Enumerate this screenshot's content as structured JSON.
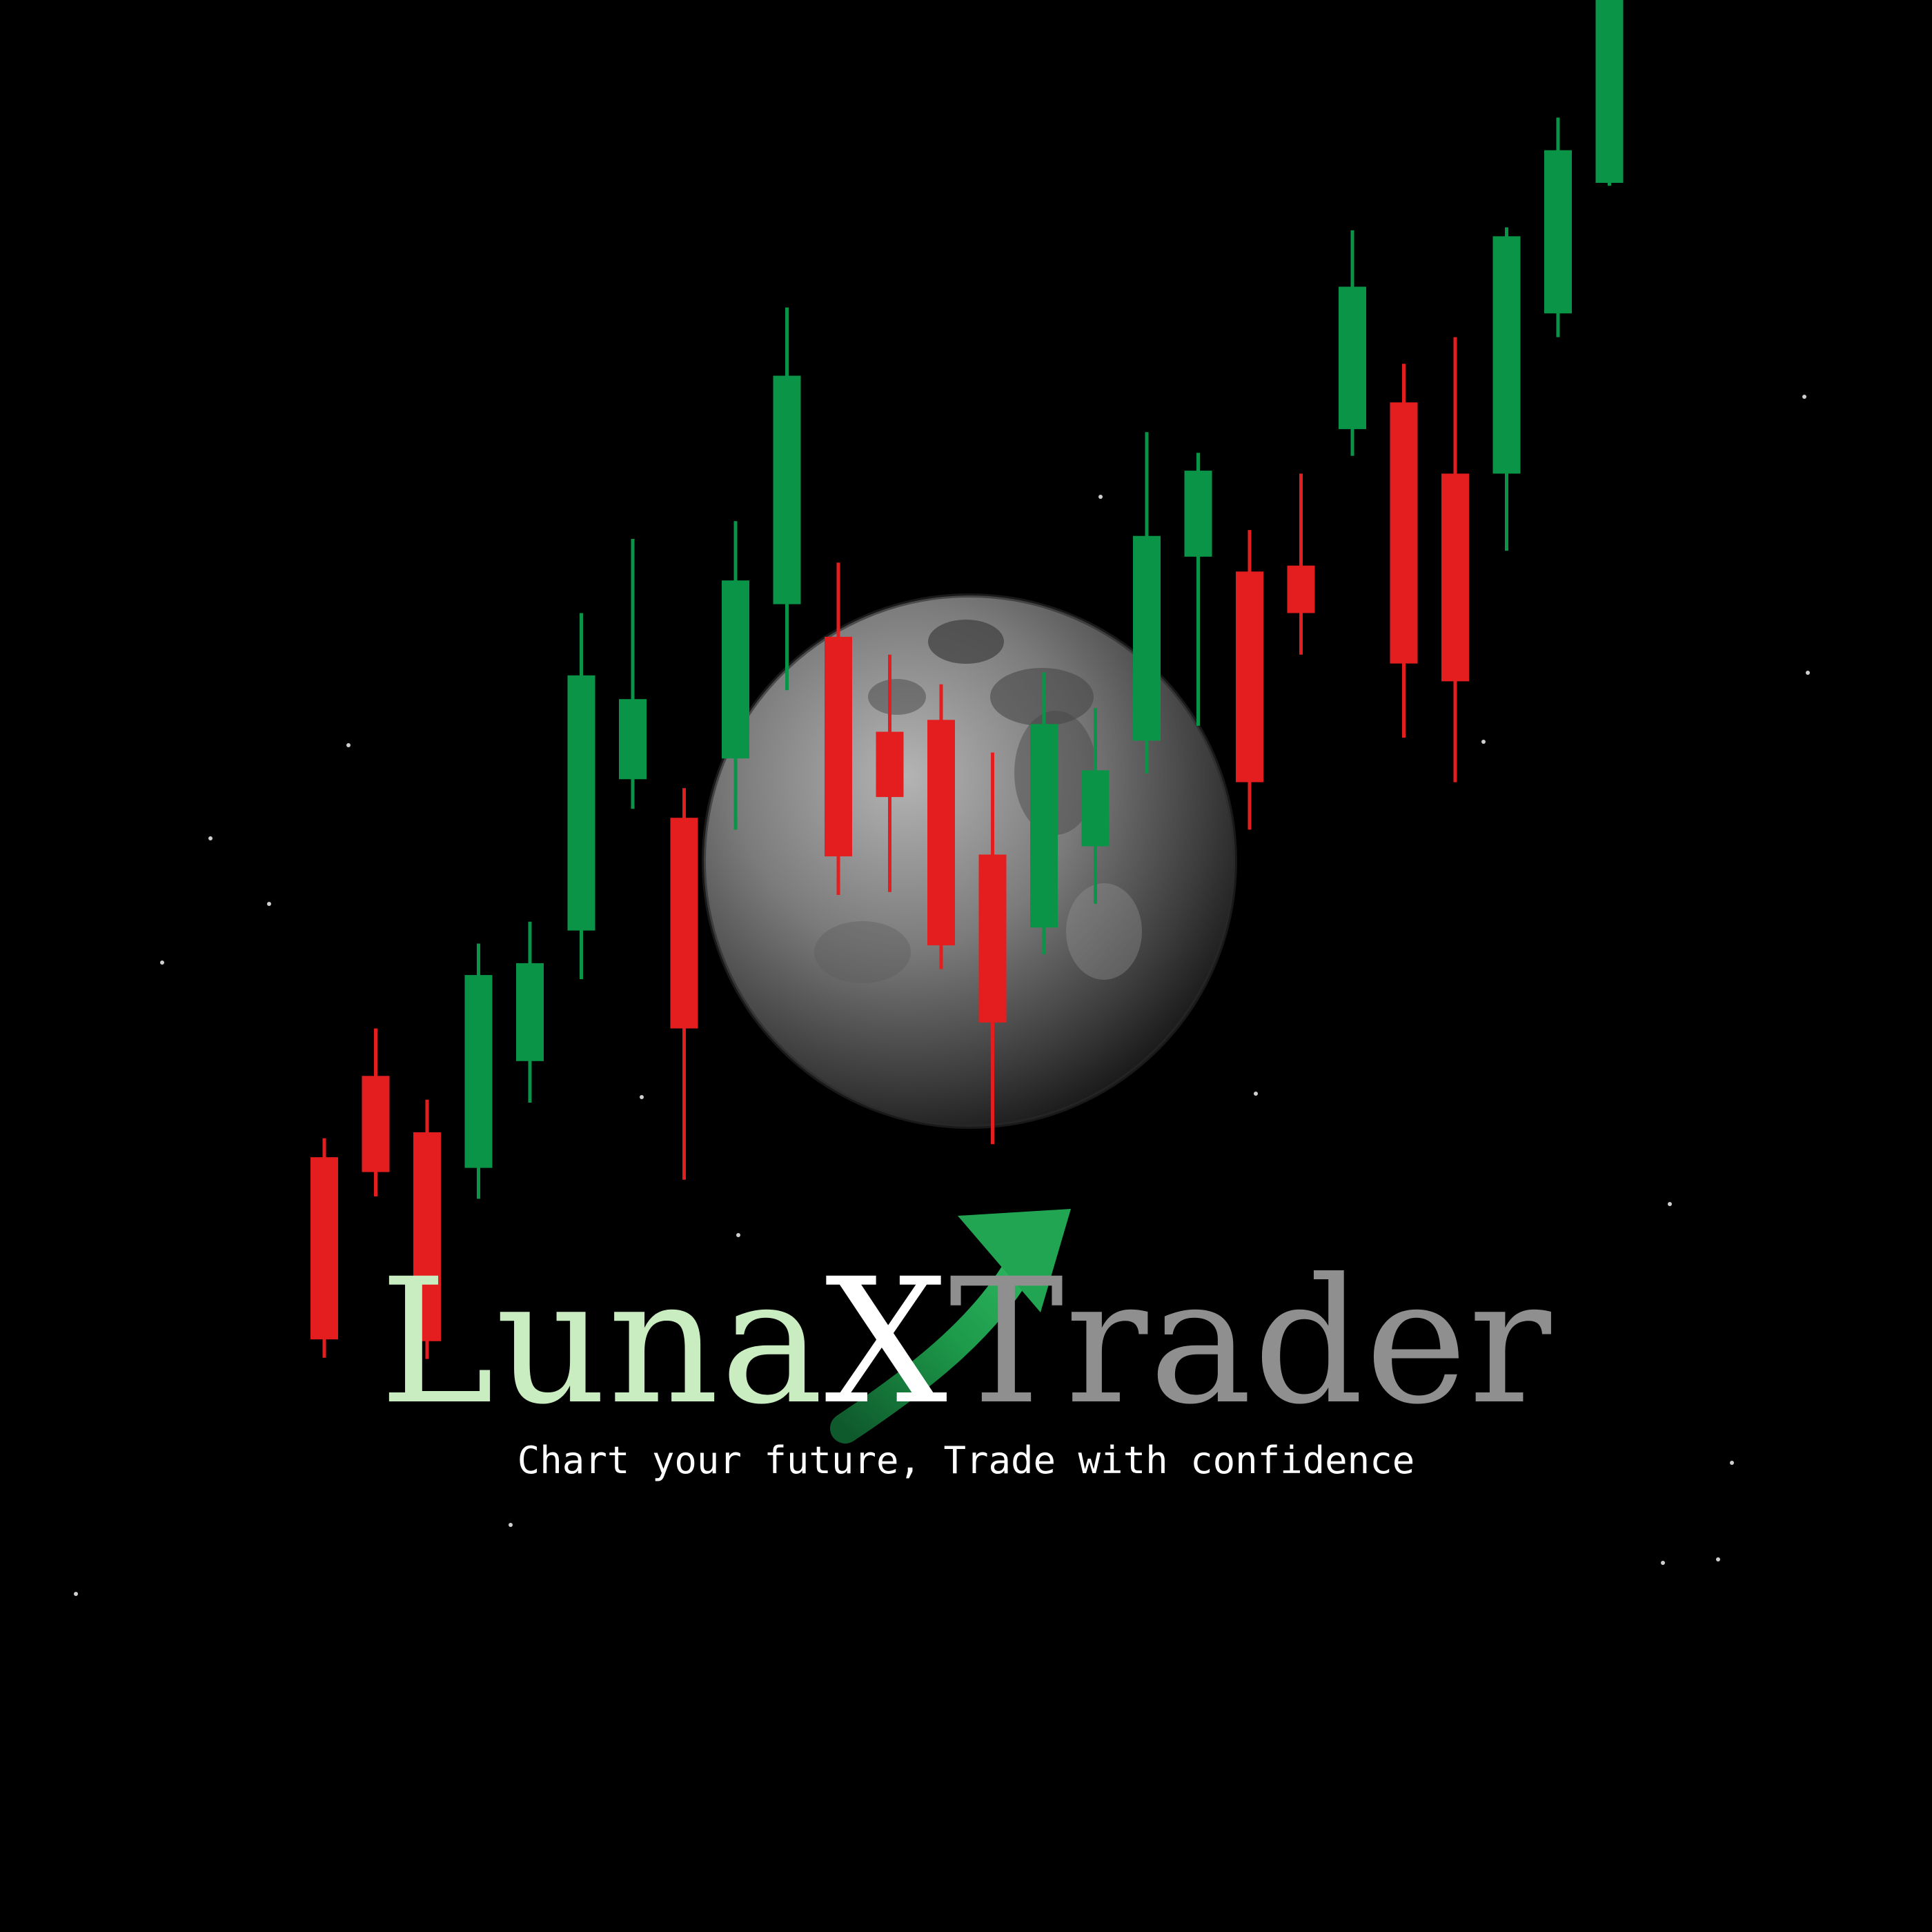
{
  "colors": {
    "background": "#000000",
    "bull": "#0a9447",
    "bear": "#e41e1e",
    "moon": "#7d7d7d",
    "arrow": "#1f9a4a",
    "luna_text": "#c9ecc0",
    "x_text": "#ffffff",
    "trader_text": "#8f8f8f",
    "tagline": "#ffffff"
  },
  "brand": {
    "luna": "Luna",
    "x": "X",
    "trader": "Trader",
    "tagline": "Chart your future, Trade with confidence"
  },
  "icons": {
    "moon": "moon-icon",
    "arrow": "up-arrow-icon"
  },
  "candles": [
    {
      "dir": "bear",
      "open": 35.8,
      "close": 5.1,
      "high": 39.0,
      "low": 2.0
    },
    {
      "dir": "bear",
      "open": 49.5,
      "close": 33.3,
      "high": 57.5,
      "low": 29.2
    },
    {
      "dir": "bear",
      "open": 40.0,
      "close": 4.8,
      "high": 45.5,
      "low": 1.8
    },
    {
      "dir": "bull",
      "open": 34.0,
      "close": 66.5,
      "high": 71.8,
      "low": 28.8
    },
    {
      "dir": "bull",
      "open": 52.0,
      "close": 68.5,
      "high": 75.5,
      "low": 45.0
    },
    {
      "dir": "bull",
      "open": 74.0,
      "close": 117.0,
      "high": 127.5,
      "low": 65.8
    },
    {
      "dir": "bull",
      "open": 99.5,
      "close": 113.0,
      "high": 140.0,
      "low": 94.5
    },
    {
      "dir": "bear",
      "open": 93.0,
      "close": 57.5,
      "high": 98.0,
      "low": 32.0
    },
    {
      "dir": "bull",
      "open": 103.0,
      "close": 133.0,
      "high": 143.0,
      "low": 91.0
    },
    {
      "dir": "bull",
      "open": 129.0,
      "close": 167.5,
      "high": 179.0,
      "low": 114.5
    },
    {
      "dir": "bear",
      "open": 123.5,
      "close": 86.5,
      "high": 136.0,
      "low": 80.0
    },
    {
      "dir": "bear",
      "open": 107.5,
      "close": 96.5,
      "high": 120.5,
      "low": 80.5
    },
    {
      "dir": "bear",
      "open": 109.5,
      "close": 71.5,
      "high": 115.5,
      "low": 67.5
    },
    {
      "dir": "bear",
      "open": 86.8,
      "close": 58.5,
      "high": 104.0,
      "low": 38.0
    },
    {
      "dir": "bull",
      "open": 74.5,
      "close": 108.8,
      "high": 117.5,
      "low": 70.0
    },
    {
      "dir": "bull",
      "open": 88.2,
      "close": 101.0,
      "high": 111.5,
      "low": 78.5
    },
    {
      "dir": "bull",
      "open": 106.0,
      "close": 140.5,
      "high": 158.0,
      "low": 100.5
    },
    {
      "dir": "bull",
      "open": 137.0,
      "close": 151.5,
      "high": 154.5,
      "low": 108.5
    },
    {
      "dir": "bear",
      "open": 134.5,
      "close": 99.0,
      "high": 141.5,
      "low": 91.0
    },
    {
      "dir": "bear",
      "open": 135.5,
      "close": 127.5,
      "high": 151.0,
      "low": 120.5
    },
    {
      "dir": "bull",
      "open": 158.5,
      "close": 182.5,
      "high": 192.0,
      "low": 154.0
    },
    {
      "dir": "bear",
      "open": 163.0,
      "close": 119.0,
      "high": 169.5,
      "low": 106.5
    },
    {
      "dir": "bear",
      "open": 151.0,
      "close": 116.0,
      "high": 174.0,
      "low": 99.0
    },
    {
      "dir": "bull",
      "open": 151.0,
      "close": 191.0,
      "high": 192.5,
      "low": 138.0
    },
    {
      "dir": "bull",
      "open": 178.0,
      "close": 205.5,
      "high": 211.0,
      "low": 174.0
    },
    {
      "dir": "bull",
      "open": 200.0,
      "close": 233.0,
      "high": 234.0,
      "low": 199.5
    }
  ]
}
